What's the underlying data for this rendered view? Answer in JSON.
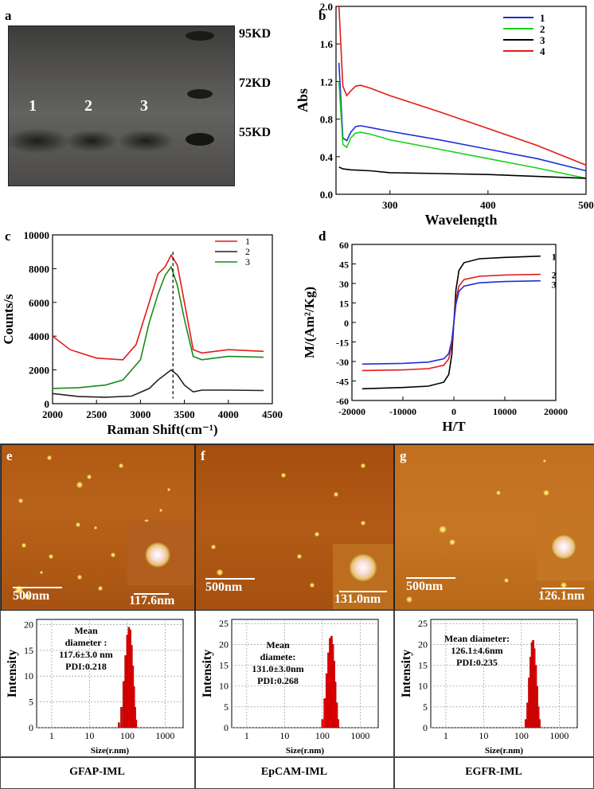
{
  "panel_labels": {
    "a": "a",
    "b": "b",
    "c": "c",
    "d": "d",
    "e": "e",
    "f": "f",
    "g": "g"
  },
  "panel_a": {
    "lanes": [
      "1",
      "2",
      "3"
    ],
    "markers": [
      "95KD",
      "72KD",
      "55KD"
    ]
  },
  "chart_data": [
    {
      "id": "b",
      "type": "line",
      "xlabel": "Wavelength",
      "ylabel": "Abs",
      "xlim": [
        245,
        500
      ],
      "ylim": [
        0.0,
        2.0
      ],
      "xticks": [
        "300",
        "400",
        "500"
      ],
      "yticks": [
        "0.0",
        "0.4",
        "0.8",
        "1.2",
        "1.6",
        "2.0"
      ],
      "legend": [
        "1",
        "2",
        "3",
        "4"
      ],
      "series": [
        {
          "name": "1",
          "color": "#1f2fd6",
          "x": [
            248,
            252,
            256,
            260,
            265,
            270,
            280,
            300,
            350,
            400,
            450,
            500
          ],
          "y": [
            1.4,
            0.6,
            0.57,
            0.66,
            0.72,
            0.73,
            0.71,
            0.67,
            0.58,
            0.48,
            0.38,
            0.25
          ]
        },
        {
          "name": "2",
          "color": "#18d018",
          "x": [
            248,
            252,
            256,
            260,
            265,
            270,
            280,
            300,
            350,
            400,
            450,
            500
          ],
          "y": [
            1.2,
            0.53,
            0.5,
            0.6,
            0.65,
            0.66,
            0.64,
            0.58,
            0.48,
            0.38,
            0.28,
            0.17
          ]
        },
        {
          "name": "3",
          "color": "#000000",
          "x": [
            248,
            252,
            260,
            280,
            300,
            350,
            400,
            450,
            500
          ],
          "y": [
            0.29,
            0.27,
            0.26,
            0.25,
            0.23,
            0.22,
            0.21,
            0.19,
            0.17
          ]
        },
        {
          "name": "4",
          "color": "#e41a1a",
          "x": [
            248,
            252,
            256,
            260,
            265,
            270,
            280,
            300,
            350,
            400,
            450,
            500
          ],
          "y": [
            2.0,
            1.15,
            1.05,
            1.1,
            1.15,
            1.16,
            1.13,
            1.05,
            0.88,
            0.7,
            0.52,
            0.31
          ]
        }
      ]
    },
    {
      "id": "c",
      "type": "line",
      "xlabel": "Raman Shift(cm⁻¹)",
      "ylabel": "Counts/s",
      "xlim": [
        2000,
        4500
      ],
      "ylim": [
        0,
        10000
      ],
      "xticks": [
        "2000",
        "2500",
        "3000",
        "3500",
        "4000",
        "4500"
      ],
      "yticks": [
        "0",
        "2000",
        "4000",
        "6000",
        "8000",
        "10000"
      ],
      "legend": [
        "1",
        "2",
        "3"
      ],
      "series": [
        {
          "name": "1",
          "color": "#e41a1a",
          "x": [
            2000,
            2200,
            2500,
            2800,
            2950,
            3100,
            3200,
            3280,
            3350,
            3420,
            3500,
            3600,
            3700,
            4000,
            4400
          ],
          "y": [
            4000,
            3200,
            2700,
            2600,
            3500,
            6000,
            7700,
            8100,
            8800,
            8200,
            6000,
            3200,
            3000,
            3200,
            3100
          ]
        },
        {
          "name": "2",
          "color": "#222222",
          "x": [
            2000,
            2300,
            2600,
            2900,
            3100,
            3200,
            3300,
            3350,
            3420,
            3500,
            3600,
            3700,
            4000,
            4400
          ],
          "y": [
            600,
            420,
            380,
            450,
            900,
            1400,
            1800,
            2000,
            1700,
            1100,
            700,
            800,
            800,
            780
          ]
        },
        {
          "name": "3",
          "color": "#1a8a1a",
          "x": [
            2000,
            2300,
            2600,
            2800,
            3000,
            3100,
            3200,
            3280,
            3350,
            3420,
            3500,
            3600,
            3700,
            4000,
            4400
          ],
          "y": [
            900,
            950,
            1100,
            1400,
            2600,
            4800,
            6500,
            7600,
            8100,
            7000,
            5000,
            2800,
            2600,
            2800,
            2750
          ]
        }
      ]
    },
    {
      "id": "d",
      "type": "line",
      "xlabel": "H/T",
      "ylabel": "M/(Am²/Kg)",
      "xlim": [
        -20000,
        20000
      ],
      "ylim": [
        -60,
        60
      ],
      "xticks": [
        "-20000",
        "-10000",
        "0",
        "10000",
        "20000"
      ],
      "yticks": [
        "-60",
        "-45",
        "-30",
        "-15",
        "0",
        "15",
        "30",
        "45",
        "60"
      ],
      "legend": [
        "1",
        "2",
        "3"
      ],
      "series": [
        {
          "name": "1",
          "color": "#000000",
          "x": [
            -18000,
            -10000,
            -5000,
            -2000,
            -1000,
            -400,
            0,
            400,
            1000,
            2000,
            5000,
            10000,
            17000
          ],
          "y": [
            -51,
            -50,
            -49,
            -46,
            -40,
            -25,
            0,
            25,
            40,
            46,
            49,
            50,
            51
          ]
        },
        {
          "name": "2",
          "color": "#e41a1a",
          "x": [
            -18000,
            -10000,
            -5000,
            -2000,
            -1000,
            -400,
            0,
            400,
            1000,
            2000,
            5000,
            10000,
            17000
          ],
          "y": [
            -37,
            -36.5,
            -35.5,
            -33,
            -28,
            -17,
            0,
            17,
            28,
            33,
            35.5,
            36.5,
            37
          ]
        },
        {
          "name": "3",
          "color": "#1f2fd6",
          "x": [
            -18000,
            -10000,
            -5000,
            -2000,
            -1000,
            -400,
            0,
            400,
            1000,
            2000,
            5000,
            10000,
            17000
          ],
          "y": [
            -32,
            -31.5,
            -30.5,
            -28,
            -24,
            -14,
            0,
            14,
            24,
            28,
            30.5,
            31.5,
            32
          ]
        }
      ]
    },
    {
      "id": "e-dls",
      "type": "bar",
      "xlabel": "Size(r.nm)",
      "ylabel": "Intensity",
      "xscale": "log",
      "xlim": [
        0.4,
        3000
      ],
      "ylim": [
        0,
        21
      ],
      "xticks": [
        "1",
        "10",
        "100",
        "1000"
      ],
      "yticks": [
        "0",
        "5",
        "10",
        "15",
        "20"
      ],
      "annotation": [
        "Mean",
        "diameter :",
        "117.6±3.0 nm",
        "PDI:0.218"
      ],
      "x": [
        60,
        70,
        80,
        90,
        100,
        110,
        120,
        130,
        140,
        150,
        160,
        170
      ],
      "values": [
        1,
        4,
        9,
        14,
        18,
        19.5,
        19,
        16,
        12,
        8,
        4,
        1.5
      ]
    },
    {
      "id": "f-dls",
      "type": "bar",
      "xlabel": "Size(r.nm)",
      "ylabel": "Intensity",
      "xscale": "log",
      "xlim": [
        0.4,
        3000
      ],
      "ylim": [
        0,
        26
      ],
      "xticks": [
        "1",
        "10",
        "100",
        "1000"
      ],
      "yticks": [
        "0",
        "5",
        "10",
        "15",
        "20",
        "25"
      ],
      "annotation": [
        "Mean",
        "diamete:",
        "131.0±3.0nm",
        "PDI:0.268"
      ],
      "x": [
        100,
        115,
        130,
        145,
        160,
        175,
        190,
        205,
        220,
        240,
        260
      ],
      "values": [
        2,
        7,
        13,
        18,
        21.5,
        22,
        20,
        16,
        11,
        6,
        2
      ]
    },
    {
      "id": "g-dls",
      "type": "bar",
      "xlabel": "Size(r.nm)",
      "ylabel": "Intensity",
      "xscale": "log",
      "xlim": [
        0.4,
        3000
      ],
      "ylim": [
        0,
        26
      ],
      "xticks": [
        "1",
        "10",
        "100",
        "1000"
      ],
      "yticks": [
        "0",
        "5",
        "10",
        "15",
        "20",
        "25"
      ],
      "annotation": [
        "Mean diameter:",
        "126.1±4.6nm",
        "PDI:0.235"
      ],
      "x": [
        130,
        145,
        160,
        175,
        190,
        205,
        220,
        240,
        260,
        280,
        300
      ],
      "values": [
        2,
        6,
        12,
        17,
        20.5,
        21,
        19,
        15,
        10,
        5,
        2
      ]
    }
  ],
  "afm": [
    {
      "id": "e",
      "scale": "500nm",
      "inset_scale": "117.6nm",
      "name": "GFAP-IML"
    },
    {
      "id": "f",
      "scale": "500nm",
      "inset_scale": "131.0nm",
      "name": "EpCAM-IML"
    },
    {
      "id": "g",
      "scale": "500nm",
      "inset_scale": "126.1nm",
      "name": "EGFR-IML"
    }
  ]
}
